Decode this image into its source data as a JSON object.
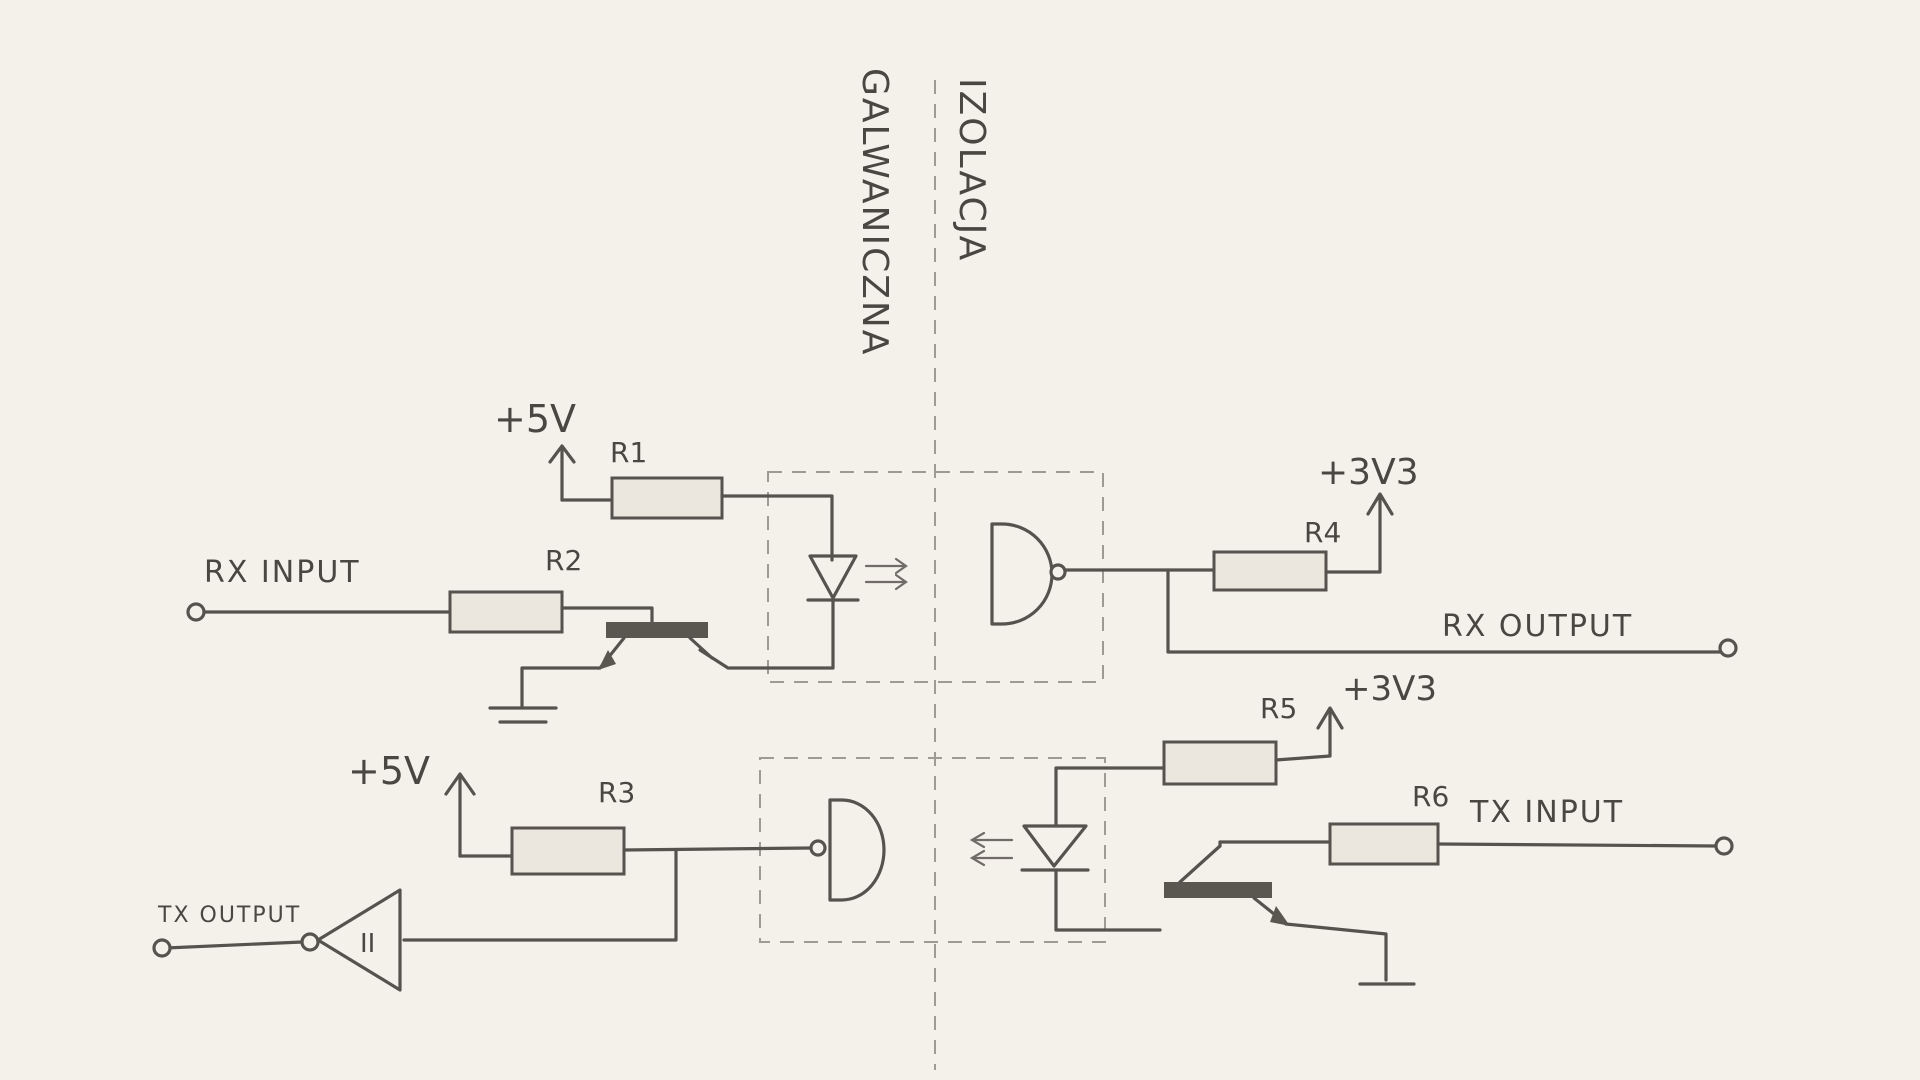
{
  "isolation_title": [
    "IZOLACJA",
    "GALWANICZNA"
  ],
  "supplies": {
    "rx_left": "+5V",
    "tx_left": "+5V",
    "rx_right": "+3V3",
    "tx_right": "+3V3"
  },
  "resistors": {
    "r1": "R1",
    "r2": "R2",
    "r3": "R3",
    "r4": "R4",
    "r5": "R5",
    "r6": "R6"
  },
  "terminals": {
    "rx_input": "RX INPUT",
    "rx_output": "RX OUTPUT",
    "tx_input": "TX INPUT",
    "tx_output": "TX OUTPUT"
  },
  "schmitt_trigger_symbol": "II"
}
